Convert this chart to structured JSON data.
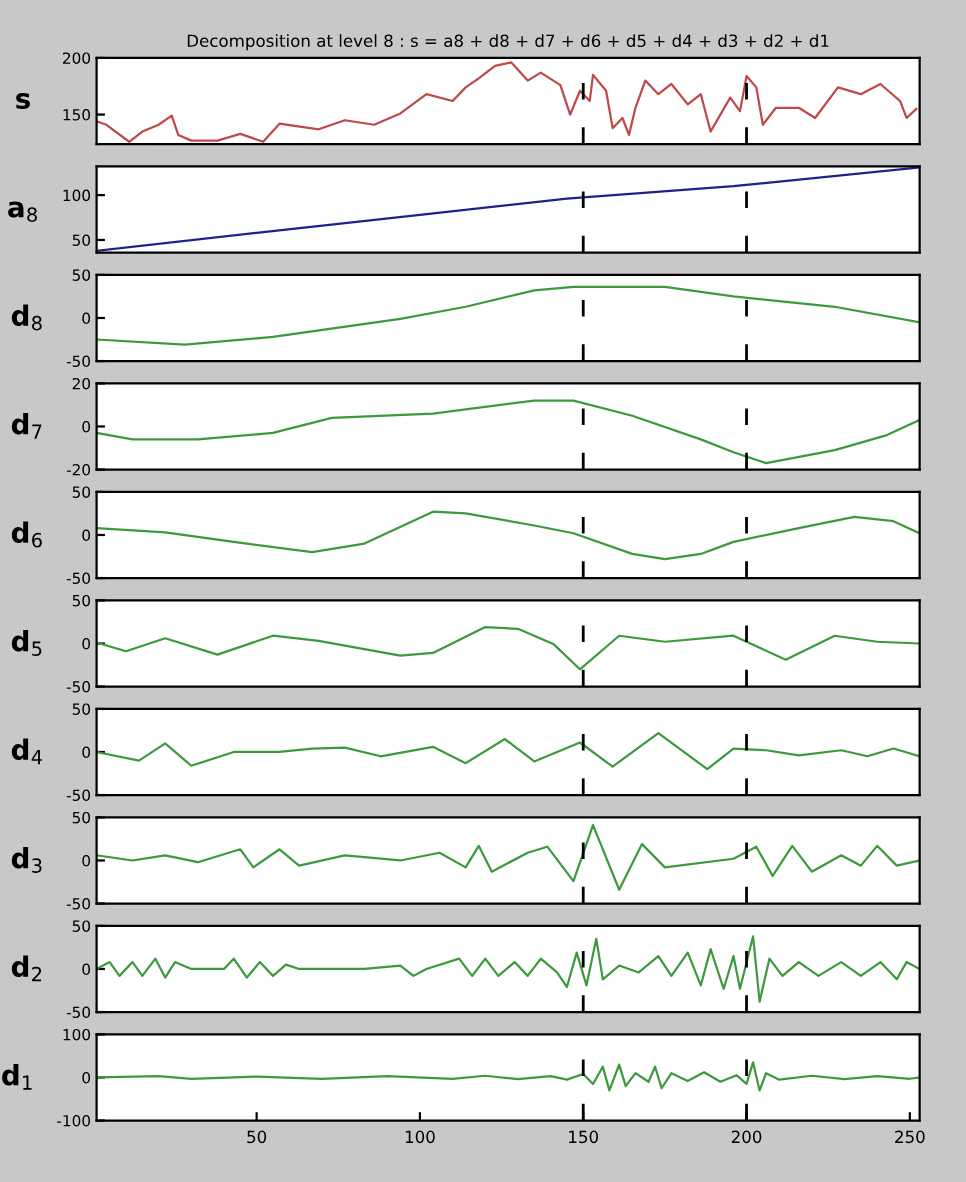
{
  "chart_data": [
    {
      "type": "line",
      "title": "Decomposition at level 8 : s = a8 + d8 + d7 + d6 + d5 + d4 + d3 + d2 + d1",
      "ylabel": "s",
      "xlim": [
        1,
        253
      ],
      "ylim": [
        124,
        200
      ],
      "yticks": [
        150,
        200
      ],
      "tick_labels": "y",
      "ref_lines": [
        {
          "axis": "x",
          "value": 150,
          "line_style": "dashed",
          "color": "#000000"
        },
        {
          "axis": "x",
          "value": 200,
          "line_style": "dashed",
          "color": "#000000"
        }
      ],
      "series": [
        {
          "color": "#c04848",
          "x": [
            1,
            4,
            11,
            15,
            20,
            24,
            26,
            30,
            38,
            45,
            52,
            57,
            69,
            77,
            86,
            94,
            102,
            110,
            114,
            118,
            123,
            128,
            133,
            137,
            143,
            146,
            149,
            152,
            153,
            157,
            159,
            162,
            164,
            166,
            169,
            173,
            177,
            182,
            186,
            189,
            192,
            195,
            198,
            200,
            203,
            205,
            209,
            216,
            221,
            228,
            235,
            241,
            247,
            249,
            252
          ],
          "values": [
            144,
            141,
            126,
            135,
            141,
            149,
            132,
            127,
            127,
            133,
            126,
            142,
            137,
            145,
            141,
            151,
            168,
            162,
            174,
            182,
            193,
            196,
            180,
            187,
            176,
            150,
            171,
            162,
            185,
            171,
            138,
            147,
            132,
            156,
            180,
            168,
            177,
            159,
            168,
            135,
            150,
            165,
            153,
            184,
            174,
            141,
            156,
            156,
            147,
            174,
            168,
            177,
            162,
            147,
            155
          ]
        }
      ]
    },
    {
      "type": "line",
      "ylabel": "a$_{8}$",
      "xlim": [
        1,
        253
      ],
      "ylim": [
        36,
        132
      ],
      "yticks": [
        50,
        100
      ],
      "tick_labels": "y",
      "ref_lines": [
        {
          "axis": "x",
          "value": 150,
          "line_style": "dashed",
          "color": "#000000"
        },
        {
          "axis": "x",
          "value": 200,
          "line_style": "dashed",
          "color": "#000000"
        }
      ],
      "series": [
        {
          "color": "#20208c",
          "x": [
            1,
            50,
            100,
            145,
            196,
            253
          ],
          "values": [
            38,
            58,
            78,
            96,
            110,
            131
          ]
        }
      ]
    },
    {
      "type": "line",
      "ylabel": "d$_{8}$",
      "xlim": [
        1,
        253
      ],
      "ylim": [
        -50,
        50
      ],
      "yticks": [
        -50,
        0,
        50
      ],
      "tick_labels": "y",
      "ref_lines": [
        {
          "axis": "x",
          "value": 150,
          "line_style": "dashed",
          "color": "#000000"
        },
        {
          "axis": "x",
          "value": 200,
          "line_style": "dashed",
          "color": "#000000"
        }
      ],
      "series": [
        {
          "color": "#3c9a3c",
          "x": [
            1,
            28,
            55,
            94,
            114,
            135,
            147,
            175,
            196,
            227,
            253
          ],
          "values": [
            -25,
            -31,
            -22,
            -1,
            13,
            32,
            36,
            36,
            25,
            13,
            -5
          ]
        }
      ]
    },
    {
      "type": "line",
      "ylabel": "d$_{7}$",
      "xlim": [
        1,
        253
      ],
      "ylim": [
        -20,
        20
      ],
      "yticks": [
        -20,
        0,
        20
      ],
      "tick_labels": "y",
      "ref_lines": [
        {
          "axis": "x",
          "value": 150,
          "line_style": "dashed",
          "color": "#000000"
        },
        {
          "axis": "x",
          "value": 200,
          "line_style": "dashed",
          "color": "#000000"
        }
      ],
      "series": [
        {
          "color": "#3c9a3c",
          "x": [
            1,
            12,
            32,
            55,
            73,
            104,
            135,
            147,
            165,
            186,
            196,
            206,
            227,
            243,
            253
          ],
          "values": [
            -3,
            -6,
            -6,
            -3,
            4,
            6,
            12,
            12,
            5,
            -6,
            -12,
            -17,
            -11,
            -4,
            3
          ]
        }
      ]
    },
    {
      "type": "line",
      "ylabel": "d$_{6}$",
      "xlim": [
        1,
        253
      ],
      "ylim": [
        -50,
        50
      ],
      "yticks": [
        -50,
        0,
        50
      ],
      "tick_labels": "y",
      "ref_lines": [
        {
          "axis": "x",
          "value": 150,
          "line_style": "dashed",
          "color": "#000000"
        },
        {
          "axis": "x",
          "value": 200,
          "line_style": "dashed",
          "color": "#000000"
        }
      ],
      "series": [
        {
          "color": "#3c9a3c",
          "x": [
            1,
            22,
            43,
            67,
            83,
            104,
            114,
            135,
            147,
            165,
            175,
            186,
            196,
            216,
            233,
            245,
            253
          ],
          "values": [
            8,
            3,
            -8,
            -20,
            -10,
            27,
            25,
            11,
            2,
            -22,
            -28,
            -22,
            -8,
            8,
            21,
            16,
            2
          ]
        }
      ]
    },
    {
      "type": "line",
      "ylabel": "d$_{5}$",
      "xlim": [
        1,
        253
      ],
      "ylim": [
        -50,
        50
      ],
      "yticks": [
        -50,
        0,
        50
      ],
      "tick_labels": "y",
      "ref_lines": [
        {
          "axis": "x",
          "value": 150,
          "line_style": "dashed",
          "color": "#000000"
        },
        {
          "axis": "x",
          "value": 200,
          "line_style": "dashed",
          "color": "#000000"
        }
      ],
      "series": [
        {
          "color": "#3c9a3c",
          "x": [
            1,
            10,
            22,
            38,
            55,
            69,
            94,
            104,
            120,
            130,
            141,
            149,
            161,
            175,
            196,
            212,
            227,
            240,
            253
          ],
          "values": [
            1,
            -9,
            6,
            -13,
            9,
            3,
            -14,
            -11,
            19,
            17,
            -1,
            -30,
            9,
            2,
            9,
            -19,
            9,
            2,
            0
          ]
        }
      ]
    },
    {
      "type": "line",
      "ylabel": "d$_{4}$",
      "xlim": [
        1,
        253
      ],
      "ylim": [
        -50,
        50
      ],
      "yticks": [
        -50,
        0,
        50
      ],
      "tick_labels": "y",
      "ref_lines": [
        {
          "axis": "x",
          "value": 150,
          "line_style": "dashed",
          "color": "#000000"
        },
        {
          "axis": "x",
          "value": 200,
          "line_style": "dashed",
          "color": "#000000"
        }
      ],
      "series": [
        {
          "color": "#3c9a3c",
          "x": [
            1,
            14,
            22,
            30,
            43,
            57,
            67,
            77,
            88,
            104,
            114,
            126,
            135,
            149,
            159,
            173,
            188,
            196,
            206,
            216,
            229,
            237,
            245,
            253
          ],
          "values": [
            0,
            -10,
            10,
            -16,
            0,
            0,
            4,
            5,
            -5,
            6,
            -13,
            15,
            -11,
            11,
            -17,
            22,
            -20,
            4,
            2,
            -4,
            2,
            -5,
            4,
            -5
          ]
        }
      ]
    },
    {
      "type": "line",
      "ylabel": "d$_{3}$",
      "xlim": [
        1,
        253
      ],
      "ylim": [
        -50,
        50
      ],
      "yticks": [
        -50,
        0,
        50
      ],
      "tick_labels": "y",
      "ref_lines": [
        {
          "axis": "x",
          "value": 150,
          "line_style": "dashed",
          "color": "#000000"
        },
        {
          "axis": "x",
          "value": 200,
          "line_style": "dashed",
          "color": "#000000"
        }
      ],
      "series": [
        {
          "color": "#3c9a3c",
          "x": [
            1,
            12,
            22,
            32,
            45,
            49,
            57,
            63,
            77,
            94,
            106,
            114,
            118,
            122,
            133,
            139,
            147,
            153,
            161,
            168,
            175,
            196,
            203,
            208,
            214,
            220,
            229,
            235,
            240,
            246,
            253
          ],
          "values": [
            6,
            0,
            6,
            -2,
            13,
            -8,
            13,
            -6,
            6,
            0,
            9,
            -8,
            17,
            -13,
            9,
            16,
            -24,
            41,
            -34,
            19,
            -8,
            2,
            16,
            -18,
            17,
            -13,
            6,
            -6,
            17,
            -6,
            0
          ]
        }
      ]
    },
    {
      "type": "line",
      "ylabel": "d$_{2}$",
      "xlim": [
        1,
        253
      ],
      "ylim": [
        -50,
        50
      ],
      "yticks": [
        -50,
        0,
        50
      ],
      "tick_labels": "y",
      "ref_lines": [
        {
          "axis": "x",
          "value": 150,
          "line_style": "dashed",
          "color": "#000000"
        },
        {
          "axis": "x",
          "value": 200,
          "line_style": "dashed",
          "color": "#000000"
        }
      ],
      "series": [
        {
          "color": "#3c9a3c",
          "x": [
            1,
            5,
            8,
            12,
            15,
            19,
            22,
            25,
            30,
            40,
            43,
            47,
            51,
            55,
            59,
            63,
            83,
            94,
            98,
            102,
            112,
            116,
            120,
            124,
            129,
            133,
            137,
            142,
            145,
            148,
            151,
            154,
            156,
            161,
            167,
            173,
            177,
            182,
            186,
            189,
            193,
            196,
            198,
            202,
            204,
            207,
            211,
            216,
            222,
            229,
            235,
            241,
            246,
            249,
            253
          ],
          "values": [
            0,
            8,
            -8,
            8,
            -8,
            12,
            -10,
            8,
            0,
            0,
            12,
            -10,
            8,
            -8,
            5,
            0,
            0,
            4,
            -8,
            0,
            12,
            -8,
            12,
            -8,
            8,
            -8,
            12,
            -4,
            -21,
            19,
            -19,
            35,
            -12,
            4,
            -4,
            15,
            -8,
            19,
            -19,
            23,
            -23,
            15,
            -23,
            38,
            -38,
            12,
            -8,
            8,
            -8,
            8,
            -8,
            8,
            -12,
            8,
            0
          ]
        }
      ]
    },
    {
      "type": "line",
      "ylabel": "d$_{1}$",
      "xlim": [
        1,
        253
      ],
      "ylim": [
        -100,
        100
      ],
      "yticks": [
        -100,
        0,
        100
      ],
      "xticks": [
        50,
        100,
        150,
        200,
        250
      ],
      "ref_lines": [
        {
          "axis": "x",
          "value": 150,
          "line_style": "dashed",
          "color": "#000000"
        },
        {
          "axis": "x",
          "value": 200,
          "line_style": "dashed",
          "color": "#000000"
        }
      ],
      "series": [
        {
          "color": "#3c9a3c",
          "x": [
            1,
            20,
            30,
            50,
            70,
            90,
            110,
            120,
            130,
            140,
            145,
            150,
            153,
            156,
            158,
            161,
            163,
            166,
            170,
            172,
            174,
            177,
            182,
            187,
            192,
            197,
            200,
            202,
            204,
            206,
            210,
            220,
            230,
            240,
            250,
            253
          ],
          "values": [
            0,
            3,
            -3,
            2,
            -3,
            3,
            -3,
            4,
            -4,
            3,
            -5,
            8,
            -15,
            25,
            -30,
            30,
            -20,
            10,
            -10,
            25,
            -25,
            10,
            -8,
            12,
            -10,
            5,
            -15,
            35,
            -30,
            10,
            -5,
            4,
            -4,
            3,
            -3,
            0
          ]
        }
      ]
    }
  ]
}
